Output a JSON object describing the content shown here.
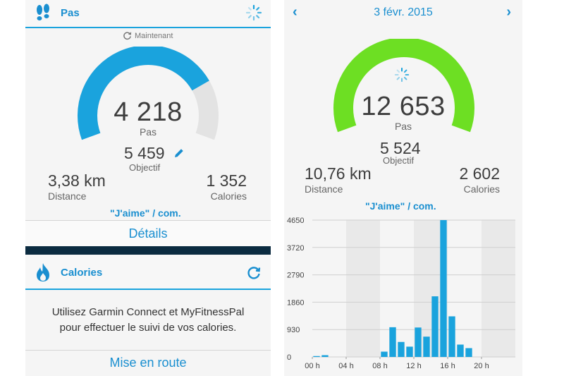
{
  "left_panel": {
    "steps_header": {
      "title": "Pas",
      "icon": "footprints-icon",
      "status_icon": "loading-spinner-icon"
    },
    "updated": {
      "label": "Maintenant",
      "icon": "refresh-icon"
    },
    "gauge": {
      "progress_fraction": 0.774,
      "color": "#1aa3dd",
      "track_color": "#e3e3e3"
    },
    "steps": {
      "value": "4 218",
      "unit": "Pas"
    },
    "goal": {
      "value": "5 459",
      "label": "Objectif",
      "icon": "edit-pencil-icon"
    },
    "distance": {
      "value": "3,38 km",
      "label": "Distance"
    },
    "calories": {
      "value": "1 352",
      "label": "Calories"
    },
    "like_link": "\"J'aime\" / com.",
    "details_button": "Détails",
    "calories_header": {
      "title": "Calories",
      "icon": "flame-icon",
      "action_icon": "sync-icon"
    },
    "calories_message_line1": "Utilisez Garmin Connect et MyFitnessPal",
    "calories_message_line2": "pour effectuer le suivi de vos calories.",
    "get_started_button": "Mise en route"
  },
  "right_panel": {
    "date_nav": {
      "date": "3 févr. 2015",
      "prev_icon": "chevron-left-icon",
      "next_icon": "chevron-right-icon"
    },
    "gauge": {
      "progress_fraction": 1.0,
      "color": "#6ddf23",
      "status_icon": "loading-spinner-icon"
    },
    "steps": {
      "value": "12 653",
      "unit": "Pas"
    },
    "goal": {
      "value": "5 524",
      "label": "Objectif"
    },
    "distance": {
      "value": "10,76 km",
      "label": "Distance"
    },
    "calories": {
      "value": "2 602",
      "label": "Calories"
    },
    "like_link": "\"J'aime\" / com."
  },
  "chart_data": {
    "type": "bar",
    "color": "#1aa3dd",
    "y_ticks": [
      "0",
      "930",
      "1860",
      "2790",
      "3720",
      "4650"
    ],
    "ylim": [
      0,
      4650
    ],
    "x_ticks": [
      "00 h",
      "04 h",
      "08 h",
      "12 h",
      "16 h",
      "20 h"
    ],
    "xlim_hours": [
      0,
      24
    ],
    "bars": [
      {
        "hour": 0.5,
        "value": 30
      },
      {
        "hour": 1.5,
        "value": 60
      },
      {
        "hour": 8.5,
        "value": 180
      },
      {
        "hour": 9.5,
        "value": 1010
      },
      {
        "hour": 10.5,
        "value": 510
      },
      {
        "hour": 11.5,
        "value": 350
      },
      {
        "hour": 12.5,
        "value": 1000
      },
      {
        "hour": 13.5,
        "value": 690
      },
      {
        "hour": 14.5,
        "value": 2060
      },
      {
        "hour": 15.5,
        "value": 4650
      },
      {
        "hour": 16.5,
        "value": 1380
      },
      {
        "hour": 17.5,
        "value": 420
      },
      {
        "hour": 18.5,
        "value": 300
      }
    ],
    "grid": true
  }
}
